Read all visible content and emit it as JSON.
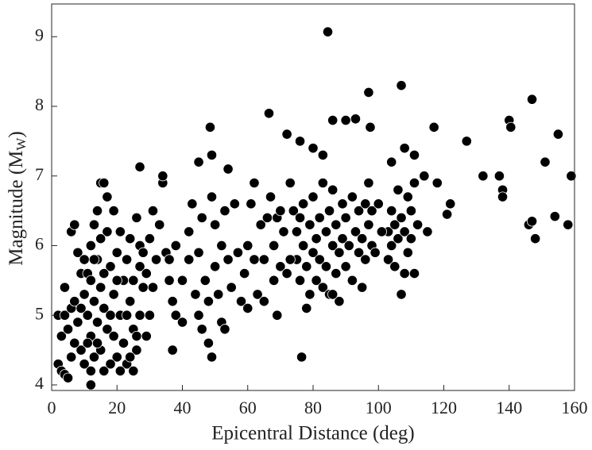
{
  "chart_data": {
    "type": "scatter",
    "xlabel": "Epicentral Distance (deg)",
    "ylabel": [
      "Magnitude (M",
      "W",
      ")"
    ],
    "xlim": [
      0,
      160
    ],
    "ylim": [
      3.92,
      9.47
    ],
    "xticks": [
      0,
      20,
      40,
      60,
      80,
      100,
      120,
      140,
      160
    ],
    "yticks": [
      4,
      5,
      6,
      7,
      8,
      9
    ],
    "grid": false,
    "color": "#000000",
    "x": [
      2,
      3,
      4,
      5,
      2,
      4,
      3,
      5,
      6,
      4,
      6,
      7,
      8,
      9,
      7,
      8,
      9,
      10,
      7,
      6,
      10,
      11,
      12,
      13,
      12,
      11,
      12,
      13,
      14,
      15,
      16,
      14,
      15,
      16,
      17,
      15,
      16,
      17,
      18,
      13,
      14,
      18,
      19,
      20,
      18,
      19,
      20,
      21,
      19,
      17,
      22,
      21,
      22,
      23,
      21,
      23,
      24,
      25,
      24,
      25,
      26,
      24,
      25,
      26,
      27,
      27,
      28,
      27,
      26,
      28,
      29,
      30,
      31,
      32,
      31,
      30,
      29,
      33,
      34,
      35,
      12,
      10,
      9,
      13,
      16,
      20,
      23,
      11,
      14,
      15,
      36,
      37,
      38,
      36,
      38,
      40,
      40,
      42,
      42,
      43,
      44,
      45,
      46,
      45,
      46,
      47,
      48,
      48,
      49,
      50,
      50,
      51,
      52,
      53,
      52,
      53,
      54,
      55,
      54,
      56,
      57,
      58,
      59,
      60,
      60,
      61,
      62,
      62,
      63,
      64,
      65,
      65,
      66,
      67,
      68,
      69,
      70,
      71,
      72,
      73,
      74,
      75,
      75,
      76,
      77,
      77,
      78,
      79,
      79,
      80,
      80,
      81,
      81,
      82,
      82,
      83,
      83,
      84,
      84,
      85,
      85,
      86,
      86,
      87,
      87,
      88,
      88,
      89,
      89,
      90,
      90,
      91,
      92,
      92,
      93,
      94,
      94,
      95,
      95,
      96,
      96,
      97,
      97,
      98,
      98,
      103,
      103,
      104,
      104,
      105,
      105,
      106,
      106,
      107,
      107,
      108,
      108,
      109,
      109,
      110,
      110,
      111,
      111,
      112,
      73,
      76,
      78,
      70,
      68,
      86,
      84.5,
      107,
      97,
      147,
      66.5,
      86,
      90,
      93,
      97.5,
      117,
      140,
      140.5,
      48.5,
      72,
      155,
      127,
      76,
      80,
      108,
      111,
      49,
      83,
      27,
      34,
      132,
      137,
      159,
      151,
      104,
      45,
      158,
      148,
      154,
      146,
      147,
      138,
      138,
      122,
      121,
      115,
      76.5,
      49,
      37,
      69,
      12,
      114,
      118,
      100,
      99,
      101
    ],
    "values": [
      4.3,
      4.2,
      4.15,
      4.1,
      5.0,
      5.0,
      4.7,
      4.8,
      5.1,
      5.4,
      6.2,
      6.3,
      5.9,
      5.6,
      5.2,
      4.9,
      4.5,
      4.3,
      4.6,
      4.4,
      5.3,
      5.0,
      4.7,
      4.4,
      4.2,
      5.6,
      6.0,
      6.3,
      6.5,
      6.9,
      6.9,
      5.8,
      5.4,
      5.1,
      4.8,
      4.5,
      4.2,
      6.2,
      5.7,
      5.2,
      4.9,
      5.0,
      4.7,
      4.4,
      4.3,
      5.3,
      5.9,
      6.2,
      6.5,
      6.7,
      5.5,
      5.0,
      4.6,
      4.3,
      4.2,
      5.8,
      6.1,
      5.5,
      5.2,
      4.8,
      4.5,
      4.4,
      4.2,
      6.4,
      6.0,
      5.7,
      5.4,
      5.0,
      4.7,
      5.9,
      5.6,
      6.1,
      6.5,
      5.8,
      5.4,
      5.0,
      4.7,
      6.3,
      6.9,
      5.9,
      5.5,
      5.8,
      5.1,
      5.8,
      5.6,
      5.5,
      5.0,
      4.6,
      4.6,
      6.1,
      5.5,
      5.2,
      5.0,
      5.8,
      6.0,
      5.5,
      4.9,
      5.8,
      6.2,
      6.6,
      5.3,
      5.0,
      4.8,
      5.9,
      6.4,
      5.5,
      5.2,
      4.6,
      6.7,
      6.3,
      5.7,
      5.3,
      4.9,
      4.8,
      6.0,
      6.5,
      5.8,
      5.4,
      7.1,
      6.6,
      5.9,
      5.2,
      5.6,
      6.0,
      5.1,
      6.6,
      5.8,
      6.9,
      5.3,
      6.3,
      5.8,
      5.2,
      6.4,
      6.7,
      6.0,
      6.4,
      5.7,
      6.2,
      5.6,
      6.9,
      6.5,
      5.8,
      6.2,
      5.5,
      6.0,
      6.6,
      5.7,
      6.3,
      5.3,
      5.9,
      6.7,
      6.1,
      5.5,
      6.4,
      5.8,
      6.9,
      5.4,
      6.2,
      5.7,
      6.5,
      5.3,
      6.0,
      6.8,
      5.6,
      6.3,
      5.9,
      5.2,
      6.6,
      6.1,
      5.7,
      6.4,
      6.0,
      5.5,
      6.7,
      6.2,
      5.9,
      6.5,
      5.4,
      6.1,
      5.8,
      6.6,
      6.3,
      6.9,
      6.0,
      6.5,
      6.2,
      5.8,
      6.5,
      6.0,
      6.3,
      5.7,
      6.8,
      6.1,
      5.3,
      6.4,
      5.6,
      6.2,
      6.7,
      5.9,
      6.5,
      6.1,
      5.6,
      6.9,
      6.3,
      5.8,
      6.4,
      5.1,
      6.5,
      5.5,
      5.3,
      9.07,
      8.3,
      8.2,
      8.1,
      7.9,
      7.8,
      7.8,
      7.82,
      7.7,
      7.7,
      7.8,
      7.7,
      7.7,
      7.6,
      7.6,
      7.5,
      7.5,
      7.4,
      7.4,
      7.3,
      7.3,
      7.3,
      7.13,
      7.0,
      7.0,
      7.0,
      7.0,
      7.2,
      7.2,
      7.2,
      6.3,
      6.1,
      6.42,
      6.3,
      6.35,
      6.8,
      6.7,
      6.6,
      6.45,
      6.2,
      4.4,
      4.4,
      4.5,
      5.0,
      4.0,
      7.0,
      6.9,
      6.6,
      5.9,
      6.2
    ]
  }
}
